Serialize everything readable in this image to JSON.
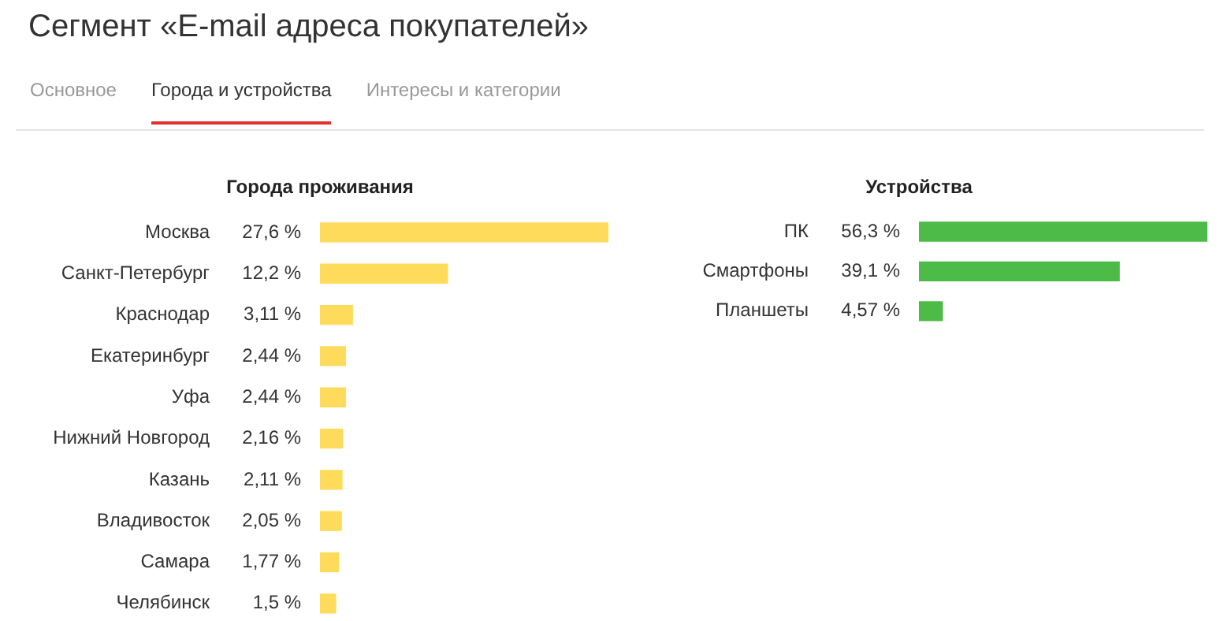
{
  "chart_data": [
    {
      "type": "other",
      "title": "Сегмент «E-mail адреса покупателей»",
      "annotations": [
        "Основное",
        "Города и устройства",
        "Интересы и категории"
      ]
    },
    {
      "type": "bar",
      "orientation": "horizontal",
      "title": "Города проживания",
      "tick_labels": "y",
      "color": "#ffdb5c",
      "categories": [
        "Москва",
        "Санкт-Петербург",
        "Краснодар",
        "Екатеринбург",
        "Уфа",
        "Нижний Новгород",
        "Казань",
        "Владивосток",
        "Самара",
        "Челябинск"
      ],
      "values": [
        27.6,
        12.2,
        3.11,
        2.44,
        2.44,
        2.16,
        2.11,
        2.05,
        1.77,
        1.5
      ],
      "value_labels": [
        "27,6 %",
        "12,2 %",
        "3,11 %",
        "2,44 %",
        "2,44 %",
        "2,16 %",
        "2,11 %",
        "2,05 %",
        "1,77 %",
        "1,5 %"
      ]
    },
    {
      "type": "bar",
      "orientation": "horizontal",
      "title": "Устройства",
      "tick_labels": "y",
      "color": "#4cbb47",
      "categories": [
        "ПК",
        "Смартфоны",
        "Планшеты"
      ],
      "values": [
        56.3,
        39.1,
        4.57
      ],
      "value_labels": [
        "56,3 %",
        "39,1 %",
        "4,57 %"
      ]
    }
  ]
}
